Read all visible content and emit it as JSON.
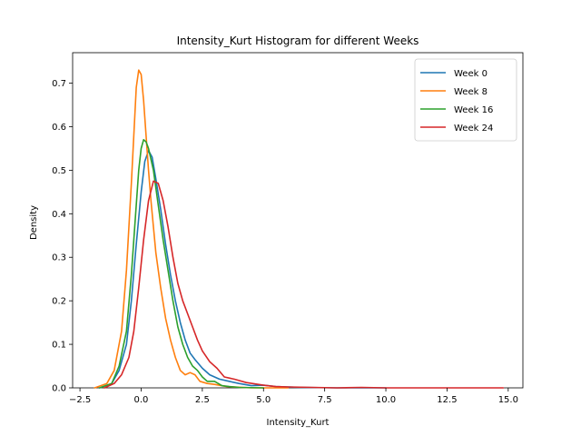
{
  "chart_data": {
    "type": "line",
    "title": "Intensity_Kurt Histogram for different Weeks",
    "xlabel": "Intensity_Kurt",
    "ylabel": "Density",
    "xlim": [
      -2.8,
      15.6
    ],
    "ylim": [
      0,
      0.77
    ],
    "xticks": [
      -2.5,
      0.0,
      2.5,
      5.0,
      7.5,
      10.0,
      12.5,
      15.0
    ],
    "xtick_labels": [
      "−2.5",
      "0.0",
      "2.5",
      "5.0",
      "7.5",
      "10.0",
      "12.5",
      "15.0"
    ],
    "yticks": [
      0.0,
      0.1,
      0.2,
      0.3,
      0.4,
      0.5,
      0.6,
      0.7
    ],
    "ytick_labels": [
      "0.0",
      "0.1",
      "0.2",
      "0.3",
      "0.4",
      "0.5",
      "0.6",
      "0.7"
    ],
    "grid": false,
    "legend_position": "top-right",
    "series": [
      {
        "name": "Week 0",
        "color": "#1f77b4",
        "x": [
          -1.7,
          -1.2,
          -0.9,
          -0.6,
          -0.4,
          -0.2,
          0.0,
          0.15,
          0.3,
          0.45,
          0.6,
          0.8,
          1.0,
          1.2,
          1.4,
          1.6,
          1.8,
          2.0,
          2.2,
          2.5,
          2.8,
          3.2,
          3.6,
          4.0,
          4.5,
          5.0,
          5.5,
          6.5,
          8.0,
          10.0
        ],
        "y": [
          0.0,
          0.01,
          0.04,
          0.1,
          0.2,
          0.33,
          0.45,
          0.52,
          0.545,
          0.53,
          0.48,
          0.41,
          0.33,
          0.26,
          0.2,
          0.15,
          0.11,
          0.08,
          0.065,
          0.045,
          0.03,
          0.02,
          0.015,
          0.01,
          0.005,
          0.006,
          0.003,
          0.001,
          0.0,
          0.0
        ]
      },
      {
        "name": "Week 8",
        "color": "#ff7f0e",
        "x": [
          -1.9,
          -1.4,
          -1.1,
          -0.8,
          -0.6,
          -0.4,
          -0.3,
          -0.2,
          -0.1,
          0.0,
          0.1,
          0.2,
          0.3,
          0.4,
          0.5,
          0.6,
          0.8,
          1.0,
          1.2,
          1.4,
          1.6,
          1.8,
          2.0,
          2.2,
          2.4,
          2.7,
          3.0,
          3.5,
          4.5,
          6.0
        ],
        "y": [
          0.0,
          0.01,
          0.04,
          0.13,
          0.27,
          0.47,
          0.58,
          0.69,
          0.73,
          0.72,
          0.66,
          0.58,
          0.5,
          0.43,
          0.37,
          0.31,
          0.23,
          0.16,
          0.11,
          0.07,
          0.04,
          0.03,
          0.035,
          0.03,
          0.015,
          0.01,
          0.008,
          0.003,
          0.0,
          0.0
        ]
      },
      {
        "name": "Week 16",
        "color": "#2ca02c",
        "x": [
          -1.7,
          -1.2,
          -0.9,
          -0.6,
          -0.4,
          -0.2,
          -0.1,
          0.0,
          0.1,
          0.2,
          0.3,
          0.5,
          0.7,
          0.9,
          1.1,
          1.3,
          1.5,
          1.7,
          1.9,
          2.1,
          2.3,
          2.5,
          2.7,
          3.0,
          3.3,
          3.6,
          4.0,
          5.0
        ],
        "y": [
          0.0,
          0.01,
          0.05,
          0.13,
          0.26,
          0.42,
          0.5,
          0.55,
          0.57,
          0.565,
          0.55,
          0.5,
          0.42,
          0.34,
          0.27,
          0.2,
          0.14,
          0.1,
          0.07,
          0.05,
          0.04,
          0.025,
          0.015,
          0.015,
          0.005,
          0.003,
          0.001,
          0.0
        ]
      },
      {
        "name": "Week 24",
        "color": "#d62728",
        "x": [
          -1.5,
          -1.1,
          -0.8,
          -0.5,
          -0.3,
          -0.1,
          0.1,
          0.3,
          0.5,
          0.7,
          0.9,
          1.1,
          1.3,
          1.5,
          1.7,
          1.9,
          2.1,
          2.3,
          2.5,
          2.8,
          3.1,
          3.4,
          3.8,
          4.3,
          5.0,
          5.5,
          6.0,
          7.0,
          8.0,
          9.0,
          10.0,
          11.0,
          12.0,
          13.0,
          14.0,
          14.8
        ],
        "y": [
          0.0,
          0.01,
          0.03,
          0.07,
          0.13,
          0.23,
          0.34,
          0.43,
          0.475,
          0.47,
          0.43,
          0.37,
          0.3,
          0.24,
          0.2,
          0.17,
          0.14,
          0.11,
          0.085,
          0.06,
          0.045,
          0.025,
          0.02,
          0.012,
          0.006,
          0.003,
          0.002,
          0.001,
          0.0,
          0.001,
          0.0,
          0.0,
          0.0,
          0.0,
          0.0,
          0.0
        ]
      }
    ]
  }
}
